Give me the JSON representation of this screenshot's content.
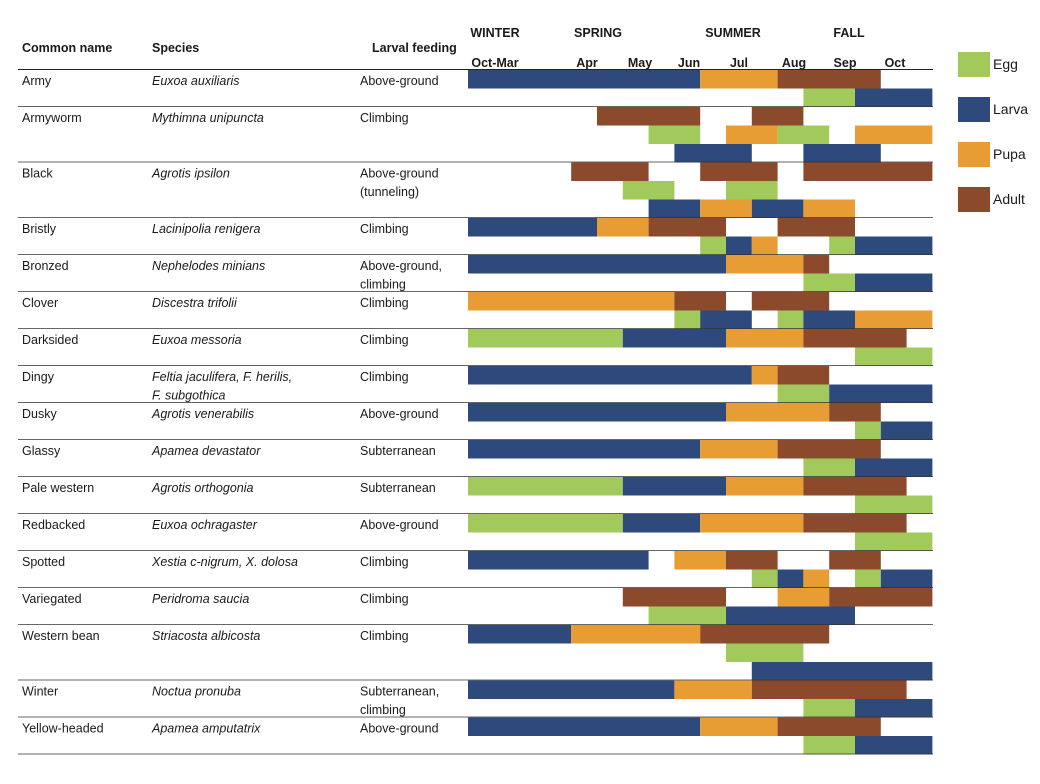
{
  "chart_data": {
    "type": "gantt",
    "headers": {
      "common": "Common name",
      "species": "Species",
      "feeding": "Larval feeding"
    },
    "seasons": [
      "WINTER",
      "SPRING",
      "SUMMER",
      "FALL"
    ],
    "months": [
      "Oct-Mar",
      "Apr",
      "May",
      "Jun",
      "Jul",
      "Aug",
      "Sep",
      "Oct"
    ],
    "stages": [
      {
        "name": "Egg",
        "color": "#a2c95c"
      },
      {
        "name": "Larva",
        "color": "#2e4a7c"
      },
      {
        "name": "Pupa",
        "color": "#e79d34"
      },
      {
        "name": "Adult",
        "color": "#8b4a2b"
      }
    ],
    "time_range": [
      0,
      18
    ],
    "rows": [
      {
        "common": [
          "Army"
        ],
        "species": [
          "Euxoa auxiliaris"
        ],
        "feeding": [
          "Above-ground"
        ],
        "lanes": [
          [
            [
              "Larva",
              0,
              9
            ],
            [
              "Pupa",
              9,
              12
            ],
            [
              "Adult",
              12,
              16
            ]
          ],
          [
            [
              "Egg",
              13,
              15
            ],
            [
              "Larva",
              15,
              18
            ]
          ]
        ]
      },
      {
        "common": [
          "Armyworm"
        ],
        "species": [
          "Mythimna unipuncta"
        ],
        "feeding": [
          "Climbing"
        ],
        "lanes": [
          [
            [
              "Adult",
              5,
              9
            ],
            [
              "Adult",
              11,
              13
            ]
          ],
          [
            [
              "Egg",
              7,
              9
            ],
            [
              "Pupa",
              10,
              12
            ],
            [
              "Egg",
              12,
              14
            ],
            [
              "Pupa",
              15,
              18
            ]
          ],
          [
            [
              "Larva",
              8,
              11
            ],
            [
              "Larva",
              13,
              16
            ]
          ]
        ]
      },
      {
        "common": [
          "Black"
        ],
        "species": [
          "Agrotis ipsilon"
        ],
        "feeding": [
          "Above-ground",
          "(tunneling)"
        ],
        "lanes": [
          [
            [
              "Adult",
              4,
              7
            ],
            [
              "Adult",
              9,
              12
            ],
            [
              "Adult",
              13,
              18
            ]
          ],
          [
            [
              "Egg",
              6,
              8
            ],
            [
              "Egg",
              10,
              12
            ]
          ],
          [
            [
              "Larva",
              7,
              9
            ],
            [
              "Pupa",
              9,
              11
            ],
            [
              "Larva",
              11,
              13
            ],
            [
              "Pupa",
              13,
              15
            ]
          ]
        ]
      },
      {
        "common": [
          "Bristly"
        ],
        "species": [
          "Lacinipolia renigera"
        ],
        "feeding": [
          "Climbing"
        ],
        "lanes": [
          [
            [
              "Larva",
              0,
              5
            ],
            [
              "Pupa",
              5,
              7
            ],
            [
              "Adult",
              7,
              10
            ],
            [
              "Adult",
              12,
              15
            ]
          ],
          [
            [
              "Egg",
              9,
              10
            ],
            [
              "Larva",
              10,
              11
            ],
            [
              "Pupa",
              11,
              12
            ],
            [
              "Egg",
              14,
              15
            ],
            [
              "Larva",
              15,
              18
            ]
          ]
        ]
      },
      {
        "common": [
          "Bronzed"
        ],
        "species": [
          "Nephelodes minians"
        ],
        "feeding": [
          "Above-ground,",
          "climbing"
        ],
        "lanes": [
          [
            [
              "Larva",
              0,
              10
            ],
            [
              "Pupa",
              10,
              13
            ],
            [
              "Adult",
              13,
              14
            ]
          ],
          [
            [
              "Egg",
              13,
              15
            ],
            [
              "Larva",
              15,
              18
            ]
          ]
        ]
      },
      {
        "common": [
          "Clover"
        ],
        "species": [
          "Discestra trifolii"
        ],
        "feeding": [
          "Climbing"
        ],
        "lanes": [
          [
            [
              "Pupa",
              0,
              8
            ],
            [
              "Adult",
              8,
              10
            ],
            [
              "Adult",
              11,
              14
            ]
          ],
          [
            [
              "Egg",
              8,
              9
            ],
            [
              "Larva",
              9,
              11
            ],
            [
              "Egg",
              12,
              13
            ],
            [
              "Larva",
              13,
              15
            ],
            [
              "Pupa",
              15,
              18
            ]
          ]
        ]
      },
      {
        "common": [
          "Darksided"
        ],
        "species": [
          "Euxoa messoria"
        ],
        "feeding": [
          "Climbing"
        ],
        "lanes": [
          [
            [
              "Egg",
              0,
              6
            ],
            [
              "Larva",
              6,
              10
            ],
            [
              "Pupa",
              10,
              13
            ],
            [
              "Adult",
              13,
              17
            ]
          ],
          [
            [
              "Egg",
              15,
              18
            ]
          ]
        ]
      },
      {
        "common": [
          "Dingy"
        ],
        "species": [
          "Feltia jaculifera, F. herilis,",
          "F. subgothica"
        ],
        "feeding": [
          "Climbing"
        ],
        "lanes": [
          [
            [
              "Larva",
              0,
              11
            ],
            [
              "Pupa",
              11,
              12
            ],
            [
              "Adult",
              12,
              14
            ]
          ],
          [
            [
              "Egg",
              12,
              14
            ],
            [
              "Larva",
              14,
              18
            ]
          ]
        ]
      },
      {
        "common": [
          "Dusky"
        ],
        "species": [
          "Agrotis venerabilis"
        ],
        "feeding": [
          "Above-ground"
        ],
        "lanes": [
          [
            [
              "Larva",
              0,
              10
            ],
            [
              "Pupa",
              10,
              14
            ],
            [
              "Adult",
              14,
              16
            ]
          ],
          [
            [
              "Egg",
              15,
              16
            ],
            [
              "Larva",
              16,
              18
            ]
          ]
        ]
      },
      {
        "common": [
          "Glassy"
        ],
        "species": [
          "Apamea devastator"
        ],
        "feeding": [
          "Subterranean"
        ],
        "lanes": [
          [
            [
              "Larva",
              0,
              9
            ],
            [
              "Pupa",
              9,
              12
            ],
            [
              "Adult",
              12,
              16
            ]
          ],
          [
            [
              "Egg",
              13,
              15
            ],
            [
              "Larva",
              15,
              18
            ]
          ]
        ]
      },
      {
        "common": [
          "Pale western"
        ],
        "species": [
          "Agrotis orthogonia"
        ],
        "feeding": [
          "Subterranean"
        ],
        "lanes": [
          [
            [
              "Egg",
              0,
              6
            ],
            [
              "Larva",
              6,
              10
            ],
            [
              "Pupa",
              10,
              13
            ],
            [
              "Adult",
              13,
              17
            ]
          ],
          [
            [
              "Egg",
              15,
              18
            ]
          ]
        ]
      },
      {
        "common": [
          "Redbacked"
        ],
        "species": [
          "Euxoa ochragaster"
        ],
        "feeding": [
          "Above-ground"
        ],
        "lanes": [
          [
            [
              "Egg",
              0,
              6
            ],
            [
              "Larva",
              6,
              9
            ],
            [
              "Pupa",
              9,
              13
            ],
            [
              "Adult",
              13,
              17
            ]
          ],
          [
            [
              "Egg",
              15,
              18
            ]
          ]
        ]
      },
      {
        "common": [
          "Spotted"
        ],
        "species": [
          "Xestia c-nigrum, X. dolosa"
        ],
        "feeding": [
          "Climbing"
        ],
        "lanes": [
          [
            [
              "Larva",
              0,
              7
            ],
            [
              "Pupa",
              8,
              10
            ],
            [
              "Adult",
              10,
              12
            ],
            [
              "Adult",
              14,
              16
            ]
          ],
          [
            [
              "Egg",
              11,
              12
            ],
            [
              "Larva",
              12,
              13
            ],
            [
              "Pupa",
              13,
              14
            ],
            [
              "Egg",
              15,
              16
            ],
            [
              "Larva",
              16,
              18
            ]
          ]
        ]
      },
      {
        "common": [
          "Variegated"
        ],
        "species": [
          "Peridroma saucia"
        ],
        "feeding": [
          "Climbing"
        ],
        "lanes": [
          [
            [
              "Adult",
              6,
              10
            ],
            [
              "Pupa",
              12,
              14
            ],
            [
              "Adult",
              14,
              18
            ]
          ],
          [
            [
              "Egg",
              7,
              10
            ],
            [
              "Larva",
              10,
              15
            ]
          ]
        ]
      },
      {
        "common": [
          "Western bean"
        ],
        "species": [
          "Striacosta albicosta"
        ],
        "feeding": [
          "Climbing"
        ],
        "lanes": [
          [
            [
              "Larva",
              0,
              4
            ],
            [
              "Pupa",
              4,
              9
            ],
            [
              "Adult",
              9,
              14
            ]
          ],
          [
            [
              "Egg",
              10,
              13
            ]
          ],
          [
            [
              "Larva",
              11,
              18
            ]
          ]
        ]
      },
      {
        "common": [
          "Winter"
        ],
        "species": [
          "Noctua pronuba"
        ],
        "feeding": [
          "Subterranean,",
          "climbing"
        ],
        "lanes": [
          [
            [
              "Larva",
              0,
              8
            ],
            [
              "Pupa",
              8,
              11
            ],
            [
              "Adult",
              11,
              17
            ]
          ],
          [
            [
              "Egg",
              13,
              15
            ],
            [
              "Larva",
              15,
              18
            ]
          ]
        ]
      },
      {
        "common": [
          "Yellow-headed"
        ],
        "species": [
          "Apamea amputatrix"
        ],
        "feeding": [
          "Above-ground"
        ],
        "lanes": [
          [
            [
              "Larva",
              0,
              9
            ],
            [
              "Pupa",
              9,
              12
            ],
            [
              "Adult",
              12,
              16
            ]
          ],
          [
            [
              "Egg",
              13,
              15
            ],
            [
              "Larva",
              15,
              18
            ]
          ]
        ]
      }
    ]
  }
}
